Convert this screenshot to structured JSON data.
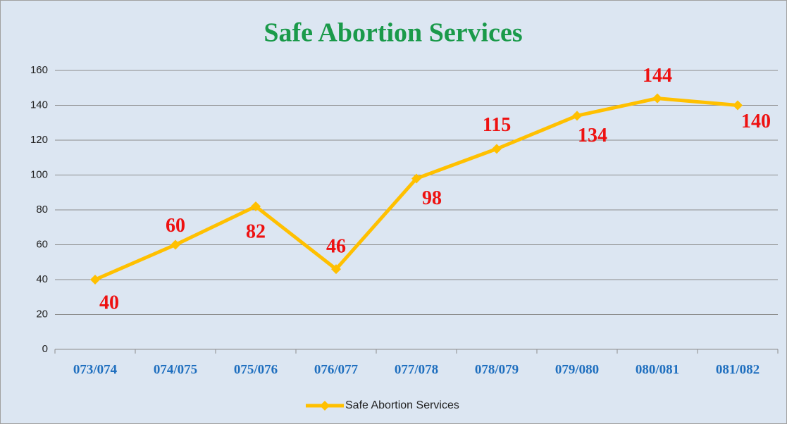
{
  "chart_data": {
    "type": "line",
    "title": "Safe Abortion Services",
    "categories": [
      "073/074",
      "074/075",
      "075/076",
      "076/077",
      "077/078",
      "078/079",
      "079/080",
      "080/081",
      "081/082"
    ],
    "series": [
      {
        "name": "Safe Abortion Services",
        "color": "#ffc000",
        "values": [
          40,
          60,
          82,
          46,
          98,
          115,
          134,
          144,
          140
        ]
      }
    ],
    "ylim": [
      0,
      160
    ],
    "yticks": [
      0,
      20,
      40,
      60,
      80,
      100,
      120,
      140,
      160
    ],
    "grid": true,
    "legend": "bottom"
  }
}
